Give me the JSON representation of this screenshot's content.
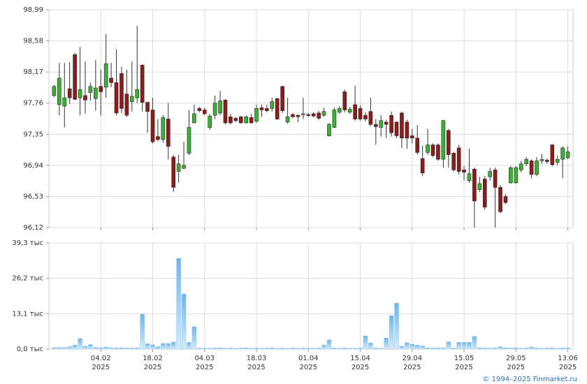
{
  "chart_data": [
    {
      "type": "candlestick",
      "up_color": "#3cb034",
      "down_color": "#8b1c1c",
      "xlim": [
        -1,
        100
      ],
      "ylim": [
        96.12,
        98.99
      ],
      "yticks": [
        {
          "value": 96.12,
          "label": "96,12"
        },
        {
          "value": 96.53,
          "label": "96,53"
        },
        {
          "value": 96.94,
          "label": "96,94"
        },
        {
          "value": 97.35,
          "label": "97,35"
        },
        {
          "value": 97.76,
          "label": "97,76"
        },
        {
          "value": 98.17,
          "label": "98,17"
        },
        {
          "value": 98.58,
          "label": "98,58"
        },
        {
          "value": 98.99,
          "label": "98,99"
        }
      ],
      "grid": true,
      "open": [
        97.86,
        97.74,
        97.72,
        97.95,
        98.4,
        97.83,
        97.86,
        97.9,
        97.82,
        97.98,
        97.97,
        98.09,
        98.03,
        98.15,
        97.88,
        97.78,
        97.83,
        98.26,
        97.77,
        97.67,
        97.32,
        97.28,
        97.55,
        97.05,
        96.86,
        96.9,
        97.1,
        97.5,
        97.69,
        97.67,
        97.44,
        97.6,
        97.63,
        97.8,
        97.58,
        97.56,
        97.58,
        97.5,
        97.57,
        97.52,
        97.7,
        97.69,
        97.69,
        97.82,
        97.98,
        97.51,
        97.61,
        97.6,
        97.61,
        97.61,
        97.62,
        97.63,
        97.6,
        97.33,
        97.44,
        97.64,
        97.91,
        97.64,
        97.74,
        97.69,
        97.6,
        97.65,
        97.48,
        97.44,
        97.51,
        97.6,
        97.51,
        97.63,
        97.51,
        97.33,
        97.3,
        97.03,
        97.11,
        97.21,
        97.21,
        97.02,
        97.4,
        97.1,
        97.17,
        96.88,
        96.74,
        96.89,
        96.62,
        96.76,
        96.79,
        96.88,
        96.65,
        96.53,
        96.71,
        96.71,
        96.88,
        96.96,
        97.0,
        96.82,
        97.0,
        97.01,
        97.21,
        96.98,
        97.02,
        97.04
      ],
      "high": [
        98.0,
        98.29,
        98.29,
        98.3,
        98.42,
        98.5,
        98.31,
        98.03,
        98.33,
        98.2,
        98.67,
        98.29,
        98.47,
        98.24,
        98.2,
        98.31,
        98.78,
        98.27,
        97.78,
        97.83,
        97.55,
        97.6,
        97.76,
        97.08,
        97.08,
        97.25,
        97.67,
        97.74,
        97.71,
        97.7,
        97.62,
        97.86,
        97.92,
        97.81,
        97.62,
        97.58,
        97.59,
        97.6,
        97.62,
        97.74,
        97.74,
        97.74,
        97.83,
        97.83,
        97.99,
        97.83,
        97.63,
        97.61,
        97.83,
        97.63,
        97.64,
        97.66,
        97.7,
        97.5,
        97.7,
        97.72,
        97.94,
        97.71,
        97.99,
        97.73,
        97.64,
        97.83,
        97.55,
        97.6,
        97.54,
        97.65,
        97.52,
        97.65,
        97.54,
        97.42,
        97.47,
        97.2,
        97.42,
        97.23,
        97.23,
        97.54,
        97.42,
        97.12,
        97.21,
        96.93,
        97.16,
        96.91,
        96.79,
        96.8,
        96.91,
        96.91,
        96.68,
        96.56,
        96.93,
        96.93,
        97.0,
        97.05,
        97.02,
        97.05,
        97.09,
        97.03,
        97.22,
        97.07,
        97.19,
        97.19
      ],
      "low": [
        97.84,
        97.6,
        97.44,
        97.75,
        97.8,
        97.6,
        97.62,
        97.79,
        97.66,
        97.6,
        97.83,
        97.97,
        97.6,
        97.63,
        97.58,
        97.65,
        97.76,
        97.65,
        97.37,
        97.23,
        97.26,
        97.24,
        97.02,
        96.59,
        96.71,
        96.89,
        97.08,
        97.5,
        97.64,
        97.6,
        97.41,
        97.55,
        97.6,
        97.48,
        97.48,
        97.51,
        97.49,
        97.49,
        97.49,
        97.5,
        97.58,
        97.64,
        97.65,
        97.54,
        97.63,
        97.49,
        97.56,
        97.51,
        97.55,
        97.58,
        97.57,
        97.54,
        97.58,
        97.32,
        97.43,
        97.62,
        97.64,
        97.62,
        97.53,
        97.53,
        97.52,
        97.46,
        97.21,
        97.32,
        97.3,
        97.32,
        97.3,
        97.17,
        97.16,
        97.23,
        97.08,
        96.8,
        97.08,
        97.05,
        97.0,
        96.91,
        96.91,
        96.86,
        96.82,
        96.74,
        96.71,
        96.12,
        96.59,
        96.36,
        96.74,
        96.12,
        96.31,
        96.43,
        96.7,
        96.7,
        96.85,
        96.93,
        96.77,
        96.8,
        96.96,
        96.96,
        96.93,
        96.94,
        96.77,
        97.02
      ],
      "close": [
        97.98,
        98.09,
        97.83,
        97.83,
        97.81,
        97.94,
        97.8,
        97.98,
        97.96,
        97.91,
        98.28,
        98.03,
        97.63,
        97.69,
        97.6,
        97.85,
        97.94,
        97.77,
        97.65,
        97.25,
        97.28,
        97.57,
        97.19,
        96.65,
        96.96,
        96.94,
        97.44,
        97.62,
        97.66,
        97.62,
        97.59,
        97.76,
        97.79,
        97.5,
        97.5,
        97.53,
        97.5,
        97.58,
        97.5,
        97.69,
        97.67,
        97.66,
        97.78,
        97.55,
        97.66,
        97.58,
        97.58,
        97.58,
        97.62,
        97.6,
        97.59,
        97.56,
        97.65,
        97.48,
        97.67,
        97.69,
        97.67,
        97.68,
        97.55,
        97.55,
        97.55,
        97.48,
        97.45,
        97.53,
        97.48,
        97.37,
        97.33,
        97.3,
        97.3,
        97.3,
        97.11,
        96.84,
        97.21,
        97.07,
        97.02,
        97.53,
        97.08,
        96.88,
        96.86,
        96.85,
        96.83,
        96.47,
        96.7,
        96.39,
        96.86,
        96.65,
        96.33,
        96.45,
        96.91,
        96.91,
        96.96,
        97.02,
        96.82,
        97.0,
        97.02,
        96.99,
        96.95,
        97.02,
        97.17,
        97.12
      ]
    },
    {
      "type": "bar",
      "color": "#8cc4ee",
      "xlim": [
        -1,
        100
      ],
      "ylim": [
        0,
        39.3
      ],
      "yticks": [
        {
          "value": 0,
          "label": "0,0 тыс"
        },
        {
          "value": 13.1,
          "label": "13,1 тыс"
        },
        {
          "value": 26.2,
          "label": "26,2 тыс"
        },
        {
          "value": 39.3,
          "label": "39,3 тыс"
        }
      ],
      "xticks": [
        {
          "value": 9,
          "label": "04.02",
          "year": "2025"
        },
        {
          "value": 19,
          "label": "18.02",
          "year": "2025"
        },
        {
          "value": 29,
          "label": "04.03",
          "year": "2025"
        },
        {
          "value": 39,
          "label": "18.03",
          "year": "2025"
        },
        {
          "value": 49,
          "label": "01.04",
          "year": "2025"
        },
        {
          "value": 59,
          "label": "15.04",
          "year": "2025"
        },
        {
          "value": 69,
          "label": "29.04",
          "year": "2025"
        },
        {
          "value": 79,
          "label": "15.05",
          "year": "2025"
        },
        {
          "value": 89,
          "label": "29.05",
          "year": "2025"
        },
        {
          "value": 99,
          "label": "13.06",
          "year": "2025"
        }
      ],
      "grid": true,
      "values": [
        0.5,
        0.6,
        0.6,
        0.9,
        1.5,
        3.9,
        1.1,
        1.7,
        0.6,
        0.5,
        0.8,
        0.5,
        0.4,
        0.5,
        0.4,
        0.4,
        0.5,
        12.9,
        2.0,
        1.6,
        0.9,
        2.1,
        2.1,
        2.6,
        33.6,
        20.4,
        2.5,
        8.3,
        0.4,
        0.3,
        0.3,
        0.4,
        0.5,
        0.3,
        0.4,
        0.3,
        0.4,
        0.5,
        0.3,
        0.4,
        0.3,
        0.4,
        0.5,
        0.3,
        0.4,
        0.3,
        0.4,
        0.3,
        0.4,
        0.3,
        0.3,
        0.4,
        1.5,
        3.4,
        0.4,
        0.3,
        0.4,
        0.3,
        0.3,
        0.4,
        4.9,
        2.3,
        0.4,
        0.3,
        4.1,
        12.4,
        17.0,
        1.1,
        2.4,
        1.8,
        1.5,
        1.2,
        0.5,
        0.4,
        0.5,
        0.5,
        2.7,
        0.4,
        2.5,
        2.5,
        2.5,
        4.7,
        0.5,
        0.4,
        0.3,
        0.5,
        0.9,
        0.5,
        0.4,
        0.5,
        0.3,
        0.4,
        0.8,
        0.4,
        0.3,
        0.4,
        0.5,
        0.3,
        0.4,
        0.5
      ]
    }
  ],
  "footer": "© 1994–2025 Finmarket.ru"
}
